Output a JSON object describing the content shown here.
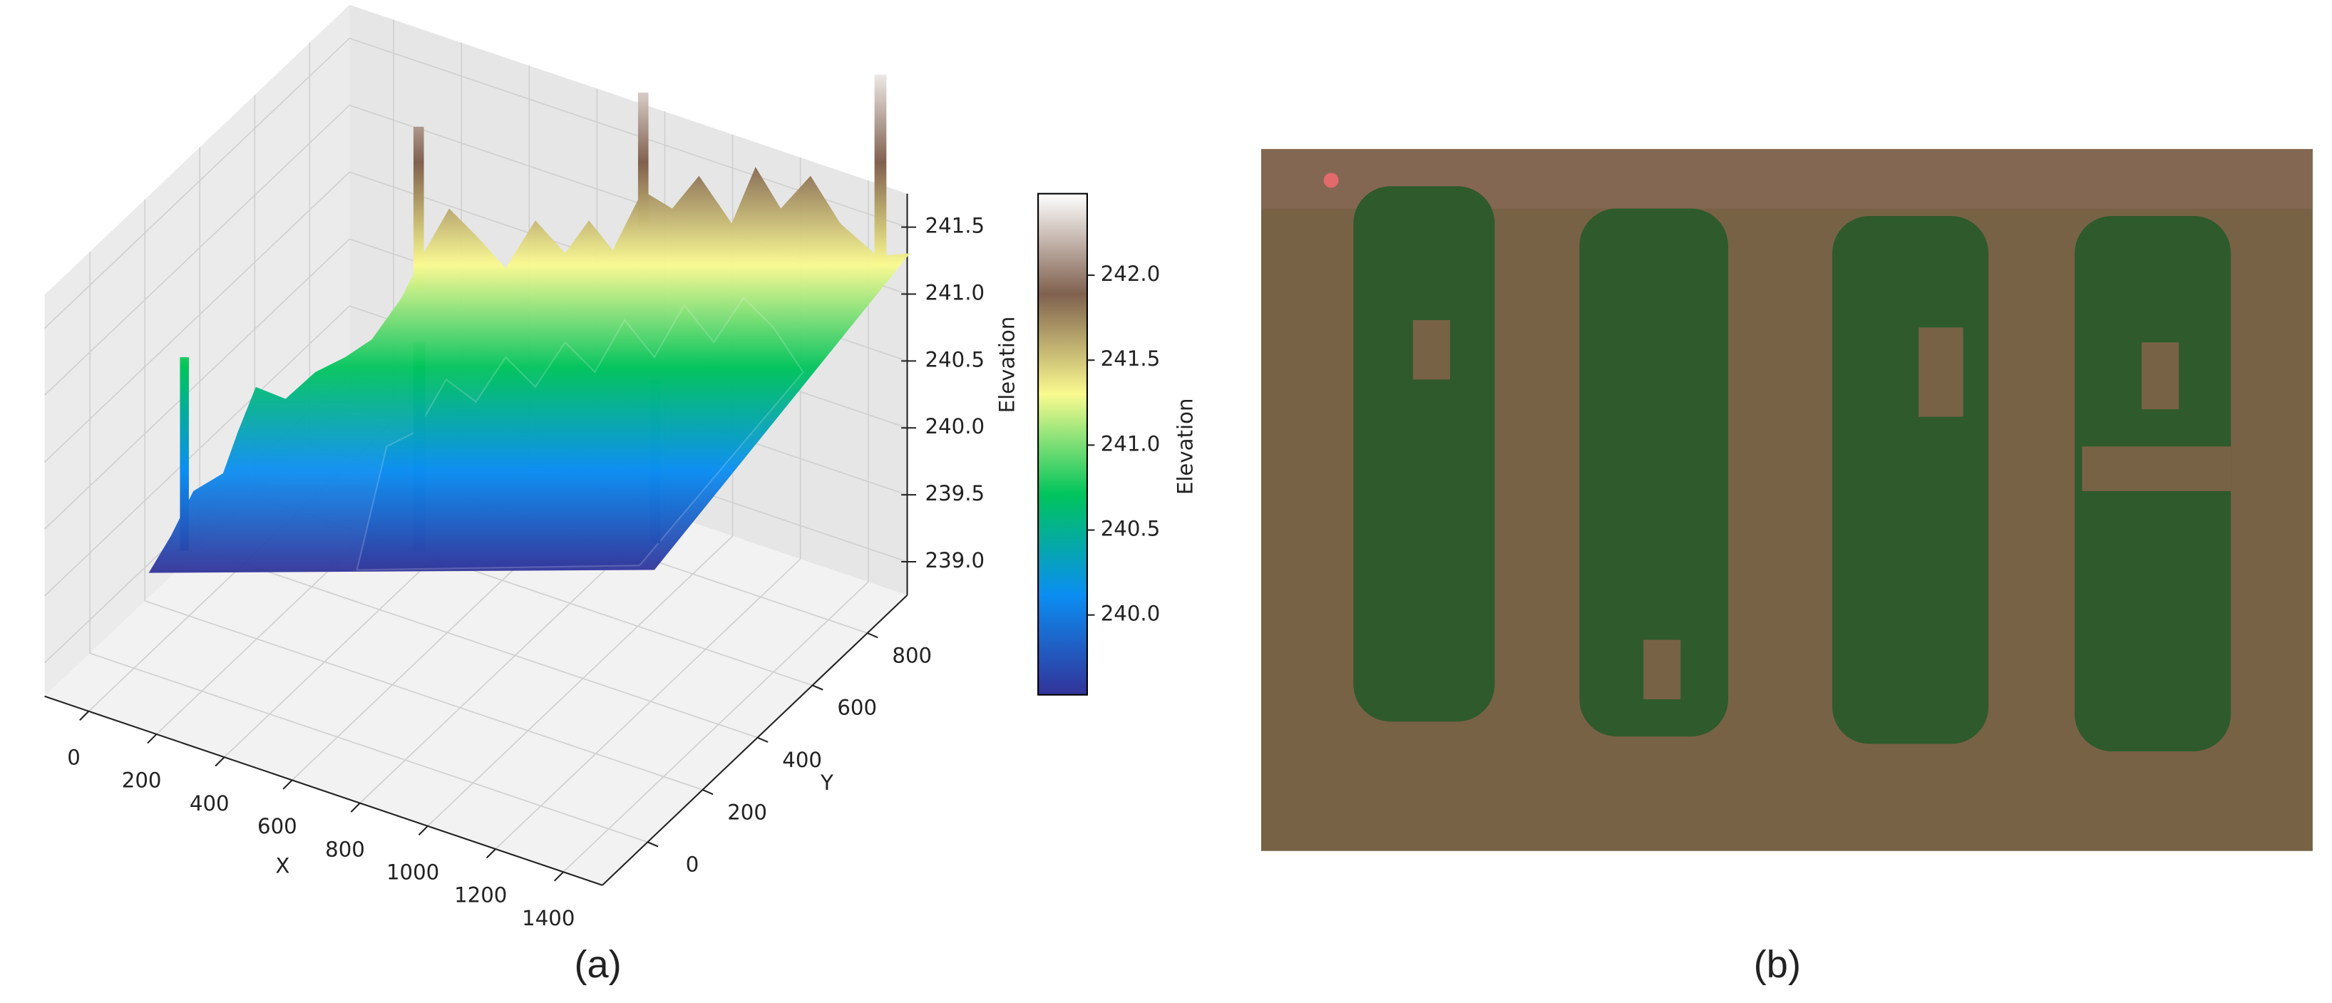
{
  "chart_data": {
    "type": "surface3d",
    "xlabel": "X",
    "ylabel": "Y",
    "zlabel": "Elevation",
    "xlim": [
      -130,
      1515
    ],
    "xticks": [
      0,
      200,
      400,
      600,
      800,
      1000,
      1200,
      1400
    ],
    "ylim": [
      -165,
      945
    ],
    "yticks": [
      0,
      200,
      400,
      600,
      800
    ],
    "zlim": [
      238.75,
      241.75
    ],
    "zticks": [
      {
        "value": 239,
        "label": "239.0"
      },
      239.5,
      {
        "value": 240,
        "label": "240.0"
      },
      240.5,
      {
        "value": 241,
        "label": "241.0"
      },
      241.5
    ],
    "grid": true,
    "colormap": [
      "#333399",
      "#0b8ef2",
      "#00c45c",
      "#fafa8f",
      "#80614f",
      "#ffffff"
    ],
    "colorbar": {
      "label": "Elevation",
      "lim": [
        239.53,
        242.48
      ],
      "ticks": [
        {
          "value": 240,
          "label": "240.0"
        },
        240.5,
        {
          "value": 241,
          "label": "241.0"
        },
        241.5,
        {
          "value": 242,
          "label": "242.0"
        }
      ]
    }
  },
  "captions": [
    "(a)",
    "(b)"
  ]
}
